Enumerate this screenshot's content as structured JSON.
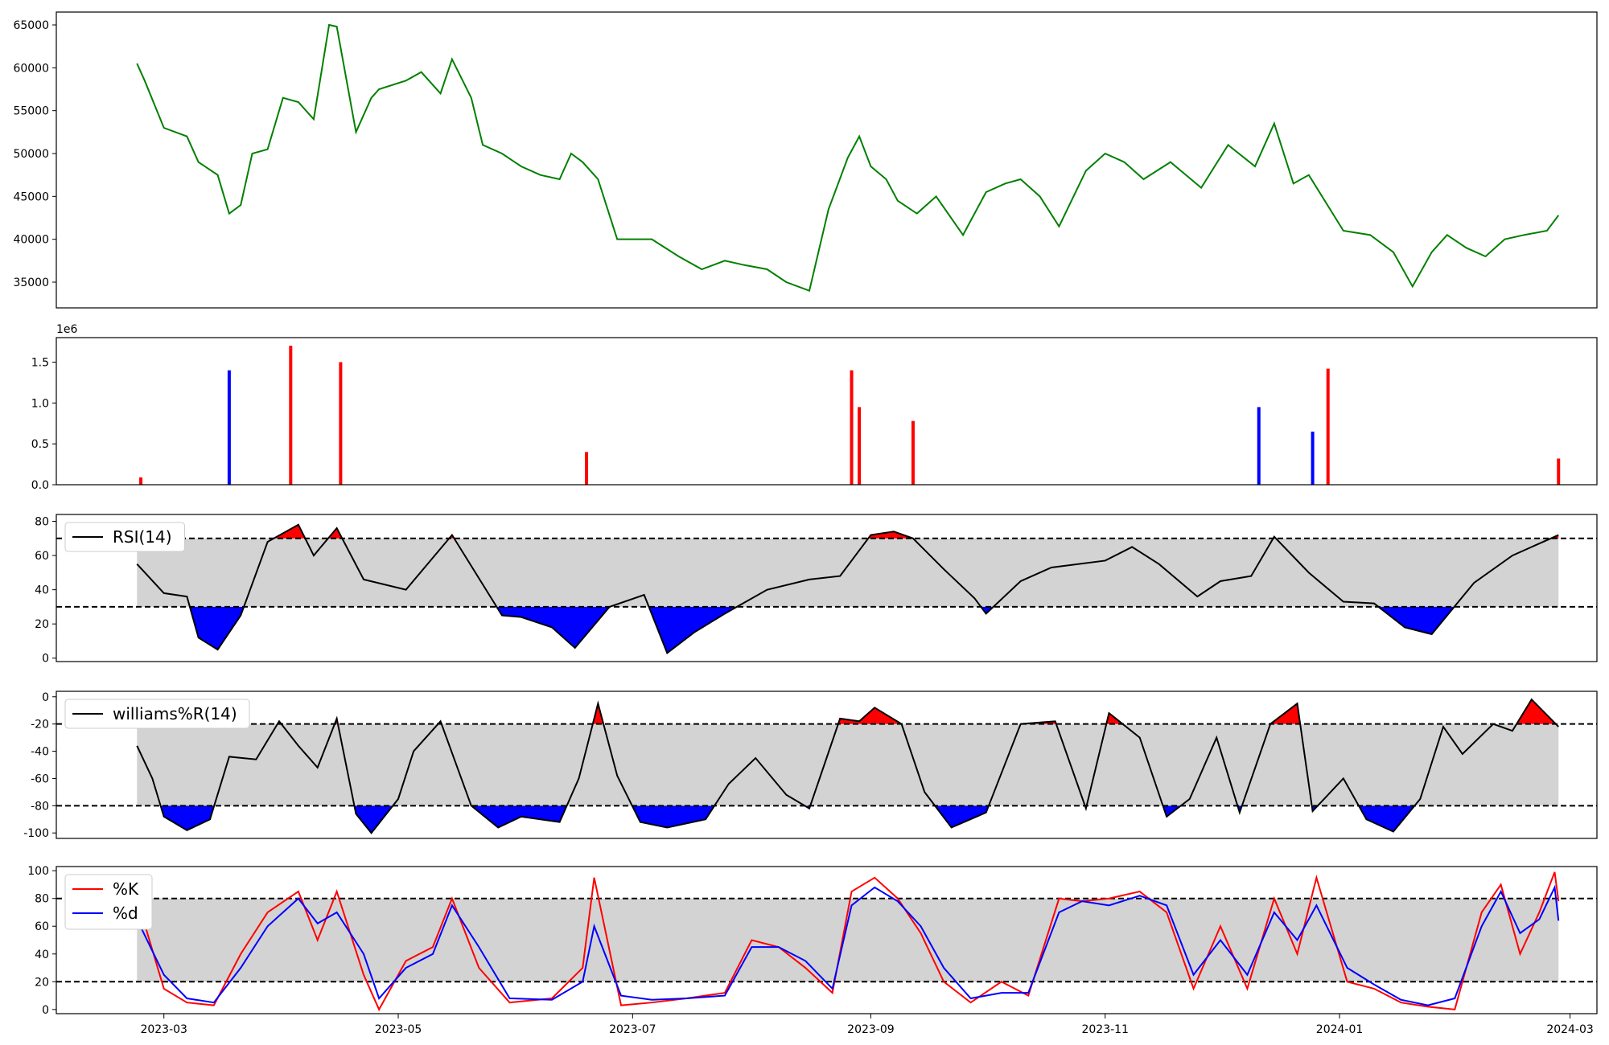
{
  "chart_data": [
    {
      "type": "line",
      "panel": "price",
      "series": [
        {
          "color": "#008000",
          "x": [
            "2023-02-22",
            "2023-02-24",
            "2023-03-01",
            "2023-03-07",
            "2023-03-10",
            "2023-03-15",
            "2023-03-18",
            "2023-03-21",
            "2023-03-24",
            "2023-03-28",
            "2023-04-01",
            "2023-04-05",
            "2023-04-09",
            "2023-04-13",
            "2023-04-15",
            "2023-04-20",
            "2023-04-24",
            "2023-04-26",
            "2023-05-03",
            "2023-05-07",
            "2023-05-12",
            "2023-05-15",
            "2023-05-20",
            "2023-05-23",
            "2023-05-28",
            "2023-06-02",
            "2023-06-07",
            "2023-06-12",
            "2023-06-15",
            "2023-06-18",
            "2023-06-22",
            "2023-06-27",
            "2023-07-06",
            "2023-07-13",
            "2023-07-19",
            "2023-07-25",
            "2023-07-30",
            "2023-08-05",
            "2023-08-10",
            "2023-08-16",
            "2023-08-21",
            "2023-08-26",
            "2023-08-29",
            "2023-09-01",
            "2023-09-05",
            "2023-09-08",
            "2023-09-13",
            "2023-09-18",
            "2023-09-25",
            "2023-10-01",
            "2023-10-06",
            "2023-10-10",
            "2023-10-15",
            "2023-10-20",
            "2023-10-27",
            "2023-11-01",
            "2023-11-06",
            "2023-11-11",
            "2023-11-18",
            "2023-11-26",
            "2023-12-03",
            "2023-12-10",
            "2023-12-15",
            "2023-12-20",
            "2023-12-24",
            "2024-01-02",
            "2024-01-09",
            "2024-01-15",
            "2024-01-20",
            "2024-01-25",
            "2024-01-29",
            "2024-02-03",
            "2024-02-08",
            "2024-02-13",
            "2024-02-18",
            "2024-02-24",
            "2024-02-27"
          ],
          "y": [
            60500,
            58500,
            53000,
            52000,
            49000,
            47500,
            43000,
            44000,
            50000,
            50500,
            56500,
            56000,
            54000,
            65000,
            64800,
            52500,
            56500,
            57500,
            58500,
            59500,
            57000,
            61000,
            56500,
            51000,
            50000,
            48500,
            47500,
            47000,
            50000,
            49000,
            47000,
            40000,
            40000,
            38000,
            36500,
            37500,
            37000,
            36500,
            35000,
            34000,
            43500,
            49500,
            52000,
            48500,
            47000,
            44500,
            43000,
            45000,
            40500,
            45500,
            46500,
            47000,
            45000,
            41500,
            48000,
            50000,
            49000,
            47000,
            49000,
            46000,
            51000,
            48500,
            53500,
            46500,
            47500,
            41000,
            40500,
            38500,
            34500,
            38500,
            40500,
            39000,
            38000,
            40000,
            40500,
            41000,
            42800
          ]
        }
      ],
      "ylim": [
        32000,
        66500
      ],
      "yticks": [
        35000,
        40000,
        45000,
        50000,
        55000,
        60000,
        65000
      ]
    },
    {
      "type": "bar",
      "panel": "volume",
      "scale_label": "1e6",
      "ylim": [
        0,
        1.8
      ],
      "yticks": [
        "0.0",
        "0.5",
        "1.0",
        "1.5"
      ],
      "up_color": "#ff0000",
      "down_color": "#0000ff",
      "x": [
        "2023-02-23",
        "2023-03-18",
        "2023-04-03",
        "2023-04-16",
        "2023-06-19",
        "2023-08-27",
        "2023-08-29",
        "2023-09-12",
        "2023-12-11",
        "2023-12-25",
        "2023-12-29",
        "2024-02-27"
      ],
      "values": [
        0.09,
        1.4,
        1.7,
        1.5,
        0.4,
        1.4,
        0.95,
        0.78,
        0.95,
        0.65,
        1.42,
        0.32
      ],
      "colors": [
        "#ff0000",
        "#0000ff",
        "#ff0000",
        "#ff0000",
        "#ff0000",
        "#ff0000",
        "#ff0000",
        "#ff0000",
        "#0000ff",
        "#0000ff",
        "#ff0000",
        "#ff0000"
      ]
    },
    {
      "type": "line",
      "panel": "rsi",
      "legend": "RSI(14)",
      "ylim": [
        -2,
        84
      ],
      "yticks": [
        0,
        20,
        40,
        60,
        80
      ],
      "upper": 70,
      "lower": 30,
      "x": [
        "2023-02-22",
        "2023-03-01",
        "2023-03-07",
        "2023-03-10",
        "2023-03-15",
        "2023-03-21",
        "2023-03-28",
        "2023-04-05",
        "2023-04-09",
        "2023-04-15",
        "2023-04-22",
        "2023-05-03",
        "2023-05-15",
        "2023-05-28",
        "2023-06-02",
        "2023-06-10",
        "2023-06-16",
        "2023-06-25",
        "2023-07-04",
        "2023-07-10",
        "2023-07-17",
        "2023-07-25",
        "2023-08-05",
        "2023-08-16",
        "2023-08-24",
        "2023-09-01",
        "2023-09-07",
        "2023-09-12",
        "2023-09-20",
        "2023-09-28",
        "2023-10-01",
        "2023-10-10",
        "2023-10-18",
        "2023-11-01",
        "2023-11-08",
        "2023-11-15",
        "2023-11-25",
        "2023-12-01",
        "2023-12-09",
        "2023-12-15",
        "2023-12-24",
        "2024-01-02",
        "2024-01-10",
        "2024-01-18",
        "2024-01-25",
        "2024-02-05",
        "2024-02-15",
        "2024-02-27"
      ],
      "values": [
        55,
        38,
        36,
        12,
        5,
        25,
        68,
        78,
        60,
        76,
        46,
        40,
        72,
        25,
        24,
        18,
        6,
        30,
        37,
        3,
        15,
        26,
        40,
        46,
        48,
        72,
        74,
        70,
        52,
        35,
        26,
        45,
        53,
        57,
        65,
        55,
        36,
        45,
        48,
        71,
        50,
        33,
        32,
        18,
        14,
        44,
        60,
        72
      ]
    },
    {
      "type": "line",
      "panel": "williams",
      "legend": "williams%R(14)",
      "ylim": [
        -104,
        4
      ],
      "yticks": [
        0,
        -20,
        -40,
        -60,
        -80,
        -100
      ],
      "upper": -20,
      "lower": -80,
      "x": [
        "2023-02-22",
        "2023-02-26",
        "2023-03-01",
        "2023-03-07",
        "2023-03-13",
        "2023-03-18",
        "2023-03-25",
        "2023-03-31",
        "2023-04-05",
        "2023-04-10",
        "2023-04-15",
        "2023-04-20",
        "2023-04-24",
        "2023-05-01",
        "2023-05-05",
        "2023-05-12",
        "2023-05-20",
        "2023-05-27",
        "2023-06-02",
        "2023-06-12",
        "2023-06-17",
        "2023-06-22",
        "2023-06-27",
        "2023-07-03",
        "2023-07-10",
        "2023-07-20",
        "2023-07-26",
        "2023-08-02",
        "2023-08-10",
        "2023-08-16",
        "2023-08-24",
        "2023-08-29",
        "2023-09-02",
        "2023-09-09",
        "2023-09-15",
        "2023-09-22",
        "2023-10-01",
        "2023-10-10",
        "2023-10-19",
        "2023-10-27",
        "2023-11-02",
        "2023-11-10",
        "2023-11-17",
        "2023-11-23",
        "2023-11-30",
        "2023-12-06",
        "2023-12-14",
        "2023-12-21",
        "2023-12-25",
        "2024-01-02",
        "2024-01-08",
        "2024-01-15",
        "2024-01-22",
        "2024-01-28",
        "2024-02-02",
        "2024-02-10",
        "2024-02-15",
        "2024-02-20",
        "2024-02-27"
      ],
      "values": [
        -36,
        -60,
        -88,
        -98,
        -90,
        -44,
        -46,
        -18,
        -36,
        -52,
        -16,
        -86,
        -100,
        -75,
        -40,
        -18,
        -80,
        -96,
        -88,
        -92,
        -60,
        -5,
        -58,
        -92,
        -96,
        -90,
        -64,
        -45,
        -72,
        -82,
        -16,
        -18,
        -8,
        -20,
        -70,
        -96,
        -85,
        -20,
        -18,
        -82,
        -12,
        -30,
        -88,
        -75,
        -30,
        -85,
        -20,
        -5,
        -84,
        -60,
        -90,
        -99,
        -75,
        -22,
        -42,
        -20,
        -25,
        -2,
        -22
      ]
    },
    {
      "type": "line",
      "panel": "stochastic",
      "ylim": [
        -3,
        103
      ],
      "yticks": [
        0,
        20,
        40,
        60,
        80,
        100
      ],
      "upper": 80,
      "lower": 20,
      "series": [
        {
          "name": "%K",
          "color": "#ff0000",
          "x": [
            "2023-02-22",
            "2023-03-01",
            "2023-03-07",
            "2023-03-14",
            "2023-03-21",
            "2023-03-28",
            "2023-04-05",
            "2023-04-10",
            "2023-04-15",
            "2023-04-22",
            "2023-04-26",
            "2023-05-03",
            "2023-05-10",
            "2023-05-15",
            "2023-05-22",
            "2023-05-30",
            "2023-06-10",
            "2023-06-18",
            "2023-06-21",
            "2023-06-28",
            "2023-07-06",
            "2023-07-15",
            "2023-07-25",
            "2023-08-01",
            "2023-08-08",
            "2023-08-15",
            "2023-08-22",
            "2023-08-27",
            "2023-09-02",
            "2023-09-08",
            "2023-09-14",
            "2023-09-20",
            "2023-09-27",
            "2023-10-05",
            "2023-10-12",
            "2023-10-20",
            "2023-10-26",
            "2023-11-02",
            "2023-11-10",
            "2023-11-17",
            "2023-11-24",
            "2023-12-01",
            "2023-12-08",
            "2023-12-15",
            "2023-12-21",
            "2023-12-26",
            "2024-01-03",
            "2024-01-10",
            "2024-01-17",
            "2024-01-24",
            "2024-01-31",
            "2024-02-07",
            "2024-02-12",
            "2024-02-17",
            "2024-02-22",
            "2024-02-26",
            "2024-02-27"
          ],
          "values": [
            80,
            15,
            5,
            3,
            40,
            70,
            85,
            50,
            85,
            25,
            0,
            35,
            45,
            80,
            30,
            5,
            8,
            30,
            95,
            3,
            5,
            8,
            12,
            50,
            45,
            30,
            12,
            85,
            95,
            80,
            55,
            20,
            5,
            20,
            10,
            80,
            78,
            80,
            85,
            70,
            15,
            60,
            15,
            80,
            40,
            95,
            20,
            15,
            5,
            2,
            0,
            70,
            90,
            40,
            70,
            99,
            78
          ]
        },
        {
          "name": "%d",
          "color": "#0000ff",
          "x": [
            "2023-02-22",
            "2023-03-01",
            "2023-03-07",
            "2023-03-14",
            "2023-03-21",
            "2023-03-28",
            "2023-04-05",
            "2023-04-10",
            "2023-04-15",
            "2023-04-22",
            "2023-04-26",
            "2023-05-03",
            "2023-05-10",
            "2023-05-15",
            "2023-05-22",
            "2023-05-30",
            "2023-06-10",
            "2023-06-18",
            "2023-06-21",
            "2023-06-28",
            "2023-07-06",
            "2023-07-15",
            "2023-07-25",
            "2023-08-01",
            "2023-08-08",
            "2023-08-15",
            "2023-08-22",
            "2023-08-27",
            "2023-09-02",
            "2023-09-08",
            "2023-09-14",
            "2023-09-20",
            "2023-09-27",
            "2023-10-05",
            "2023-10-12",
            "2023-10-20",
            "2023-10-26",
            "2023-11-02",
            "2023-11-10",
            "2023-11-17",
            "2023-11-24",
            "2023-12-01",
            "2023-12-08",
            "2023-12-15",
            "2023-12-21",
            "2023-12-26",
            "2024-01-03",
            "2024-01-10",
            "2024-01-17",
            "2024-01-24",
            "2024-01-31",
            "2024-02-07",
            "2024-02-12",
            "2024-02-17",
            "2024-02-22",
            "2024-02-26",
            "2024-02-27"
          ],
          "values": [
            65,
            25,
            8,
            5,
            30,
            60,
            80,
            62,
            70,
            40,
            8,
            30,
            40,
            75,
            45,
            8,
            7,
            20,
            60,
            10,
            7,
            8,
            10,
            45,
            45,
            35,
            15,
            75,
            88,
            78,
            60,
            30,
            8,
            12,
            12,
            70,
            78,
            75,
            82,
            75,
            25,
            50,
            25,
            70,
            50,
            75,
            30,
            18,
            7,
            3,
            8,
            60,
            85,
            55,
            65,
            88,
            64
          ]
        }
      ]
    }
  ],
  "x_axis": {
    "start": "2023-02-01",
    "end": "2024-03-08",
    "tick_labels": [
      "2023-03",
      "2023-05",
      "2023-07",
      "2023-09",
      "2023-11",
      "2024-01",
      "2024-03"
    ]
  },
  "colors": {
    "band_fill": "#d3d3d3",
    "overbought_fill": "#ff0000",
    "oversold_fill": "#0000ff",
    "indicator_line": "#000000"
  }
}
